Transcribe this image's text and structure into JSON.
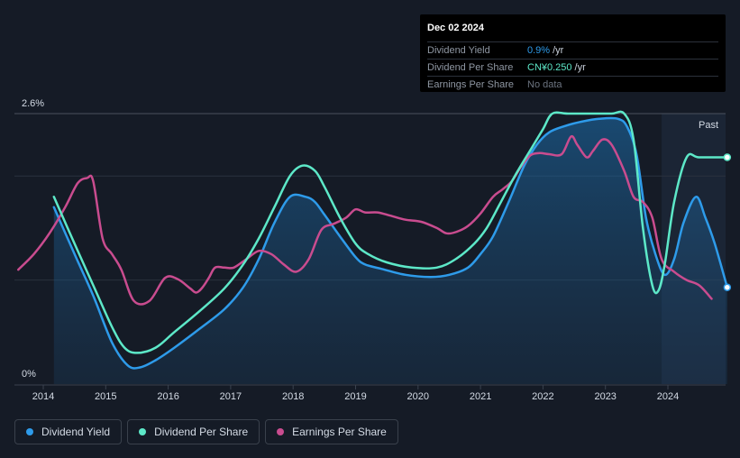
{
  "tooltip": {
    "date": "Dec 02 2024",
    "rows": [
      {
        "label": "Dividend Yield",
        "value": "0.9%",
        "unit": "/yr",
        "color": "#2e9bea"
      },
      {
        "label": "Dividend Per Share",
        "value": "CN¥0.250",
        "unit": "/yr",
        "color": "#5de8c8"
      },
      {
        "label": "Earnings Per Share",
        "value": "No data",
        "unit": "",
        "color": "#6c7480"
      }
    ]
  },
  "legend": [
    {
      "label": "Dividend Yield",
      "color": "#2e9bea"
    },
    {
      "label": "Dividend Per Share",
      "color": "#5de8c8"
    },
    {
      "label": "Earnings Per Share",
      "color": "#c94c8f"
    }
  ],
  "chart_data": {
    "type": "line",
    "ylim": [
      0,
      2.6
    ],
    "y_tick_labels": [
      "2.6%",
      "0%"
    ],
    "x_tick_labels": [
      "2014",
      "2015",
      "2016",
      "2017",
      "2018",
      "2019",
      "2020",
      "2021",
      "2022",
      "2023",
      "2024"
    ],
    "xlim": [
      2013.6,
      2024.95
    ],
    "past_label": "Past",
    "past_start": 2023.9,
    "series": [
      {
        "name": "Dividend Yield",
        "color": "#2e9bea",
        "filled": true,
        "x": [
          2014.17,
          2014.5,
          2014.8,
          2015.1,
          2015.35,
          2015.55,
          2015.8,
          2016.1,
          2016.5,
          2016.9,
          2017.2,
          2017.45,
          2017.7,
          2017.95,
          2018.2,
          2018.35,
          2018.5,
          2018.75,
          2019.0,
          2019.15,
          2019.4,
          2019.8,
          2020.2,
          2020.5,
          2020.8,
          2021.0,
          2021.2,
          2021.45,
          2021.7,
          2021.9,
          2022.1,
          2022.35,
          2022.6,
          2022.9,
          2023.2,
          2023.35,
          2023.5,
          2023.65,
          2023.8,
          2023.95,
          2024.1,
          2024.25,
          2024.45,
          2024.6,
          2024.75,
          2024.95
        ],
        "values": [
          1.7,
          1.25,
          0.85,
          0.4,
          0.18,
          0.16,
          0.23,
          0.35,
          0.53,
          0.72,
          0.93,
          1.2,
          1.55,
          1.8,
          1.8,
          1.75,
          1.63,
          1.42,
          1.22,
          1.15,
          1.11,
          1.05,
          1.03,
          1.05,
          1.12,
          1.25,
          1.42,
          1.75,
          2.1,
          2.3,
          2.42,
          2.48,
          2.52,
          2.55,
          2.55,
          2.47,
          2.2,
          1.6,
          1.25,
          1.05,
          1.2,
          1.55,
          1.8,
          1.6,
          1.35,
          0.93
        ]
      },
      {
        "name": "Dividend Per Share",
        "color": "#5de8c8",
        "filled": false,
        "x": [
          2014.17,
          2014.5,
          2014.8,
          2015.1,
          2015.3,
          2015.5,
          2015.8,
          2016.1,
          2016.5,
          2016.9,
          2017.2,
          2017.45,
          2017.7,
          2017.95,
          2018.15,
          2018.35,
          2018.5,
          2018.75,
          2019.0,
          2019.2,
          2019.5,
          2019.9,
          2020.3,
          2020.6,
          2020.9,
          2021.1,
          2021.3,
          2021.55,
          2021.8,
          2022.0,
          2022.15,
          2022.4,
          2022.8,
          2023.1,
          2023.3,
          2023.45,
          2023.6,
          2023.75,
          2023.85,
          2023.95,
          2024.1,
          2024.3,
          2024.5,
          2024.95
        ],
        "values": [
          1.8,
          1.35,
          0.95,
          0.55,
          0.35,
          0.3,
          0.35,
          0.5,
          0.7,
          0.92,
          1.15,
          1.4,
          1.7,
          2.0,
          2.1,
          2.05,
          1.9,
          1.6,
          1.35,
          1.25,
          1.17,
          1.12,
          1.12,
          1.2,
          1.35,
          1.5,
          1.72,
          2.0,
          2.25,
          2.45,
          2.6,
          2.6,
          2.6,
          2.6,
          2.6,
          2.35,
          1.5,
          0.95,
          0.9,
          1.15,
          1.75,
          2.18,
          2.18,
          2.18
        ]
      },
      {
        "name": "Earnings Per Share",
        "color": "#c94c8f",
        "filled": false,
        "x": [
          2013.6,
          2013.85,
          2014.1,
          2014.35,
          2014.55,
          2014.7,
          2014.8,
          2014.95,
          2015.1,
          2015.25,
          2015.45,
          2015.7,
          2015.95,
          2016.15,
          2016.35,
          2016.45,
          2016.55,
          2016.65,
          2016.75,
          2016.9,
          2017.05,
          2017.25,
          2017.45,
          2017.65,
          2017.85,
          2018.05,
          2018.25,
          2018.45,
          2018.65,
          2018.85,
          2019.0,
          2019.15,
          2019.35,
          2019.55,
          2019.8,
          2020.05,
          2020.3,
          2020.45,
          2020.6,
          2020.8,
          2021.0,
          2021.2,
          2021.35,
          2021.5,
          2021.65,
          2021.8,
          2021.95,
          2022.1,
          2022.3,
          2022.45,
          2022.55,
          2022.7,
          2022.8,
          2022.95,
          2023.1,
          2023.3,
          2023.45,
          2023.6,
          2023.75,
          2023.9,
          2024.1,
          2024.3,
          2024.5,
          2024.7
        ],
        "values": [
          1.1,
          1.25,
          1.45,
          1.7,
          1.93,
          1.98,
          1.95,
          1.4,
          1.25,
          1.1,
          0.8,
          0.8,
          1.02,
          1.01,
          0.92,
          0.88,
          0.93,
          1.02,
          1.12,
          1.12,
          1.12,
          1.2,
          1.28,
          1.25,
          1.15,
          1.08,
          1.2,
          1.48,
          1.54,
          1.6,
          1.68,
          1.65,
          1.65,
          1.62,
          1.58,
          1.56,
          1.5,
          1.45,
          1.46,
          1.52,
          1.64,
          1.8,
          1.87,
          1.95,
          2.09,
          2.2,
          2.22,
          2.21,
          2.21,
          2.38,
          2.3,
          2.18,
          2.24,
          2.35,
          2.3,
          2.05,
          1.8,
          1.75,
          1.6,
          1.2,
          1.08,
          1.0,
          0.95,
          0.82
        ]
      }
    ]
  }
}
